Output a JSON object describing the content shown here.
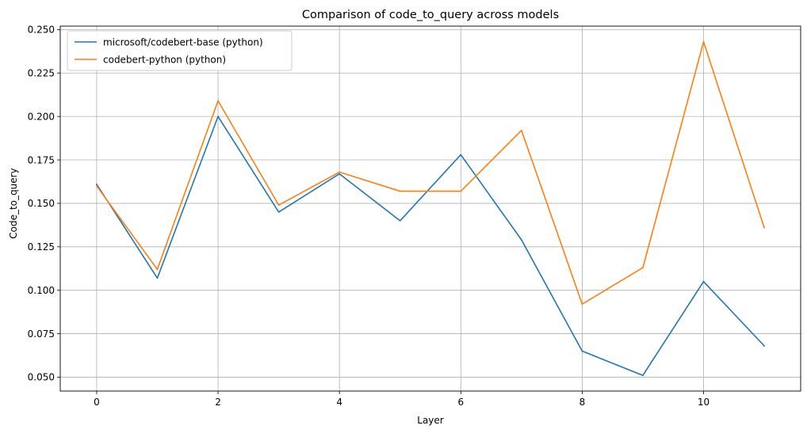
{
  "chart_data": {
    "type": "line",
    "title": "Comparison of code_to_query across models",
    "xlabel": "Layer",
    "ylabel": "Code_to_query",
    "x": [
      0,
      1,
      2,
      3,
      4,
      5,
      6,
      7,
      8,
      9,
      10,
      11
    ],
    "xlim": [
      -0.6,
      11.6
    ],
    "ylim": [
      0.042,
      0.252
    ],
    "xticks": [
      0,
      2,
      4,
      6,
      8,
      10
    ],
    "xtick_labels": [
      "0",
      "2",
      "4",
      "6",
      "8",
      "10"
    ],
    "yticks": [
      0.05,
      0.075,
      0.1,
      0.125,
      0.15,
      0.175,
      0.2,
      0.225,
      0.25
    ],
    "ytick_labels": [
      "0.050",
      "0.075",
      "0.100",
      "0.125",
      "0.150",
      "0.175",
      "0.200",
      "0.225",
      "0.250"
    ],
    "grid": true,
    "legend_position": "top-left",
    "series": [
      {
        "name": "microsoft/codebert-base (python)",
        "color": "#1f77b4",
        "values": [
          0.161,
          0.107,
          0.2,
          0.145,
          0.167,
          0.14,
          0.178,
          0.129,
          0.065,
          0.051,
          0.105,
          0.068
        ]
      },
      {
        "name": "codebert-python (python)",
        "color": "#ff7f0e",
        "values": [
          0.16,
          0.112,
          0.209,
          0.149,
          0.168,
          0.157,
          0.157,
          0.192,
          0.092,
          0.113,
          0.243,
          0.136
        ]
      }
    ]
  }
}
